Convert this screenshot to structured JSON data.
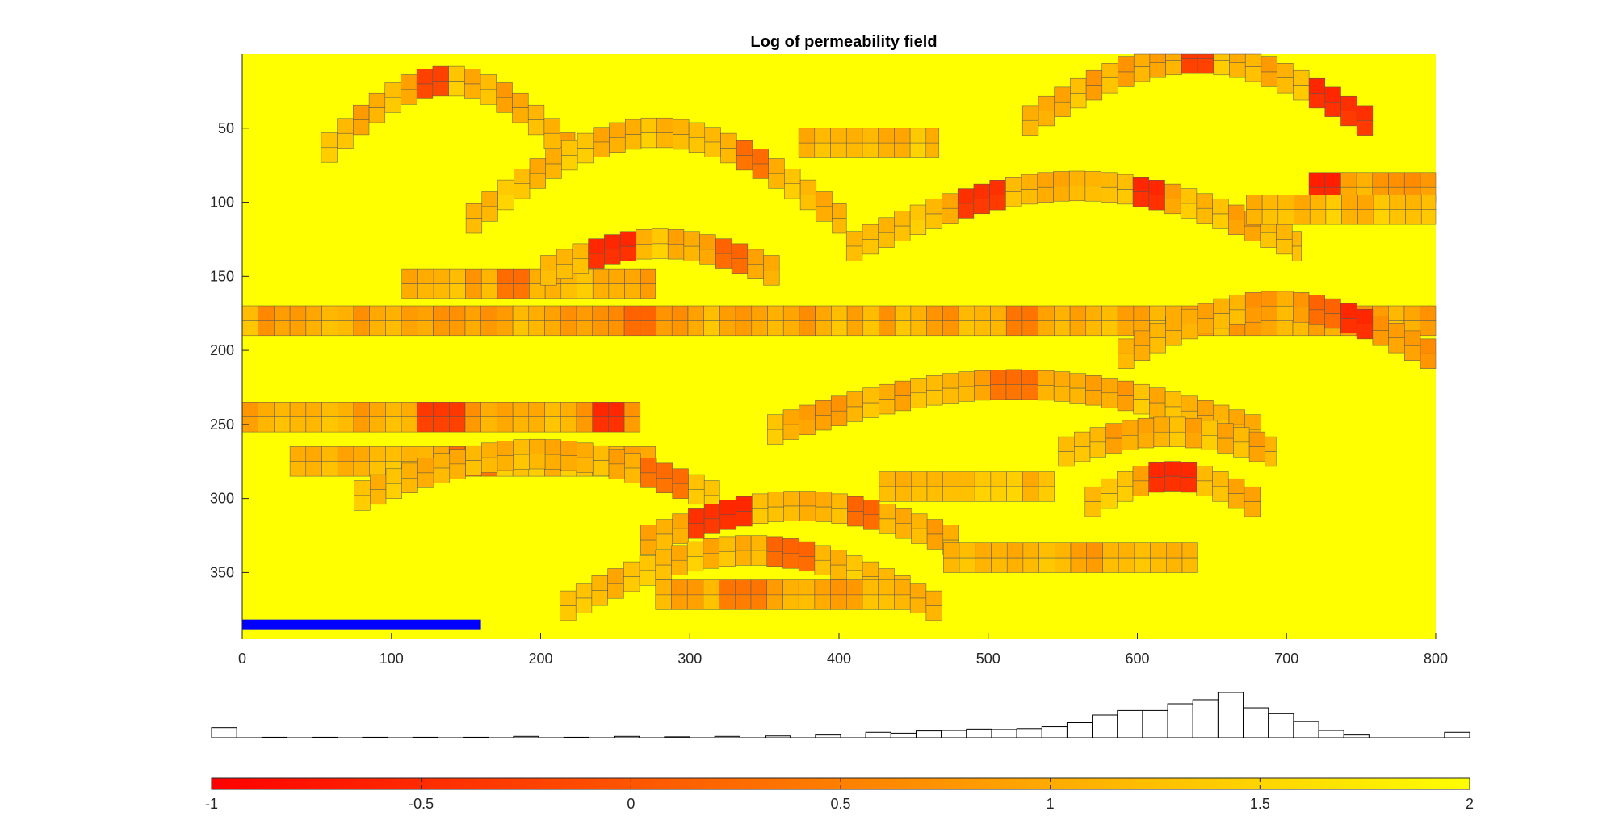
{
  "colors": {
    "field_background": "#ffff00",
    "high_permeability": "#ffc000",
    "low_permeability": "#ff0000",
    "well": "#0000ff",
    "cell_edge": "#555555",
    "histogram_edge": "#000000"
  },
  "chart_data": [
    {
      "type": "heatmap",
      "title": "Log of permeability field",
      "xlim": [
        0,
        800
      ],
      "ylim": [
        395,
        0
      ],
      "y_reversed": true,
      "x_ticks": [
        0,
        100,
        200,
        300,
        400,
        500,
        600,
        700,
        800
      ],
      "y_ticks": [
        50,
        100,
        150,
        200,
        250,
        300,
        350
      ],
      "background_value": 2,
      "cell_size": [
        10.67,
        10
      ],
      "well": {
        "x": [
          0,
          160
        ],
        "y": 385,
        "color": "#0000ff"
      },
      "channels": [
        {
          "x": [
            53,
            223
          ],
          "y0": 68,
          "amp": -50,
          "value": 1.1,
          "shade": 0.55,
          "hot": [
            [
              0.45,
              -0.2
            ]
          ]
        },
        {
          "x": [
            373,
            467
          ],
          "y0": 60,
          "amp": 0,
          "value": 1.2,
          "shade": 0.5
        },
        {
          "x": [
            523,
            763
          ],
          "y0": 48,
          "amp": -45,
          "value": 1.05,
          "shade": 0.6,
          "hot": [
            [
              0.5,
              -0.3
            ],
            [
              0.85,
              -0.5
            ],
            [
              0.93,
              -0.4
            ]
          ]
        },
        {
          "x": [
            150,
            405
          ],
          "y0": 115,
          "amp": -62,
          "value": 1.2,
          "shade": 0.5,
          "hot": [
            [
              0.75,
              0.3
            ]
          ]
        },
        {
          "x": [
            715,
            800
          ],
          "y0": 90,
          "amp": 0,
          "value": 0.9,
          "shade": 0.55,
          "hot": [
            [
              0.05,
              -0.6
            ]
          ]
        },
        {
          "x": [
            405,
            710
          ],
          "y0": 132,
          "amp": -43,
          "value": 1.1,
          "shade": 0.55,
          "hot": [
            [
              0.3,
              -0.4
            ],
            [
              0.65,
              -0.5
            ]
          ]
        },
        {
          "x": [
            673,
            800
          ],
          "y0": 105,
          "amp": 0,
          "value": 1.2,
          "shade": 0.5
        },
        {
          "x": [
            107,
            277
          ],
          "y0": 155,
          "amp": 0,
          "value": 1.05,
          "shade": 0.6,
          "hot": [
            [
              0.45,
              0.3
            ]
          ]
        },
        {
          "x": [
            200,
            365
          ],
          "y0": 148,
          "amp": -20,
          "value": 1.15,
          "shade": 0.55,
          "hot": [
            [
              0.3,
              -0.5
            ],
            [
              0.8,
              0.2
            ]
          ]
        },
        {
          "x": [
            0,
            800
          ],
          "y0": 180,
          "amp": 0,
          "value": 0.95,
          "shade": 0.65,
          "hot": [
            [
              0.33,
              0.2
            ],
            [
              0.65,
              0.4
            ]
          ]
        },
        {
          "x": [
            587,
            800
          ],
          "y0": 205,
          "amp": -35,
          "value": 0.9,
          "shade": 0.65,
          "hot": [
            [
              0.75,
              -0.5
            ],
            [
              0.65,
              0.2
            ]
          ]
        },
        {
          "x": [
            0,
            267
          ],
          "y0": 245,
          "amp": 0,
          "value": 1.0,
          "shade": 0.6,
          "hot": [
            [
              0.5,
              -0.3
            ],
            [
              0.93,
              -0.5
            ]
          ]
        },
        {
          "x": [
            352,
            683
          ],
          "y0": 255,
          "amp": -32,
          "value": 1.05,
          "shade": 0.6,
          "hot": [
            [
              0.5,
              0.3
            ]
          ]
        },
        {
          "x": [
            547,
            693
          ],
          "y0": 270,
          "amp": -15,
          "value": 1.05,
          "shade": 0.6
        },
        {
          "x": [
            32,
            277
          ],
          "y0": 275,
          "amp": 0,
          "value": 1.1,
          "shade": 0.55,
          "hot": [
            [
              0.5,
              0.3
            ]
          ]
        },
        {
          "x": [
            75,
            320
          ],
          "y0": 300,
          "amp": -30,
          "value": 1.1,
          "shade": 0.55,
          "hot": [
            [
              0.85,
              0.3
            ]
          ]
        },
        {
          "x": [
            427,
            547
          ],
          "y0": 292,
          "amp": 0,
          "value": 1.2,
          "shade": 0.5
        },
        {
          "x": [
            565,
            683
          ],
          "y0": 305,
          "amp": -20,
          "value": 1.1,
          "shade": 0.55,
          "hot": [
            [
              0.5,
              -0.5
            ]
          ]
        },
        {
          "x": [
            267,
            480
          ],
          "y0": 330,
          "amp": -25,
          "value": 1.0,
          "shade": 0.6,
          "hot": [
            [
              0.2,
              -0.4
            ],
            [
              0.3,
              -0.5
            ],
            [
              0.7,
              0.2
            ]
          ]
        },
        {
          "x": [
            213,
            473
          ],
          "y0": 375,
          "amp": -40,
          "value": 1.15,
          "shade": 0.5,
          "hot": [
            [
              0.6,
              0.2
            ]
          ]
        },
        {
          "x": [
            470,
            640
          ],
          "y0": 340,
          "amp": 0,
          "value": 1.05,
          "shade": 0.6
        },
        {
          "x": [
            277,
            453
          ],
          "y0": 365,
          "amp": 0,
          "value": 1.05,
          "shade": 0.6,
          "hot": [
            [
              0.35,
              0.4
            ]
          ]
        }
      ]
    },
    {
      "type": "histogram",
      "xlim": [
        -1,
        2
      ],
      "bin_width": 0.06,
      "x": [
        -0.97,
        -0.85,
        -0.73,
        -0.61,
        -0.49,
        -0.37,
        -0.25,
        -0.13,
        -0.01,
        0.11,
        0.23,
        0.35,
        0.47,
        0.53,
        0.59,
        0.65,
        0.71,
        0.77,
        0.83,
        0.89,
        0.95,
        1.01,
        1.07,
        1.13,
        1.19,
        1.25,
        1.31,
        1.37,
        1.43,
        1.49,
        1.55,
        1.61,
        1.67,
        1.73,
        1.97
      ],
      "counts": [
        0.22,
        0.01,
        0.01,
        0.01,
        0.01,
        0.01,
        0.03,
        0.01,
        0.03,
        0.02,
        0.03,
        0.04,
        0.06,
        0.08,
        0.12,
        0.1,
        0.15,
        0.16,
        0.19,
        0.18,
        0.2,
        0.24,
        0.33,
        0.5,
        0.6,
        0.6,
        0.75,
        0.84,
        1.0,
        0.66,
        0.53,
        0.36,
        0.16,
        0.06,
        0.12
      ]
    },
    {
      "type": "colorbar",
      "range": [
        -1,
        2
      ],
      "ticks": [
        -1,
        -0.5,
        0,
        0.5,
        1,
        1.5,
        2
      ],
      "tick_labels": [
        "-1",
        "-0.5",
        "0",
        "0.5",
        "1",
        "1.5",
        "2"
      ],
      "colormap": "autumn"
    }
  ]
}
